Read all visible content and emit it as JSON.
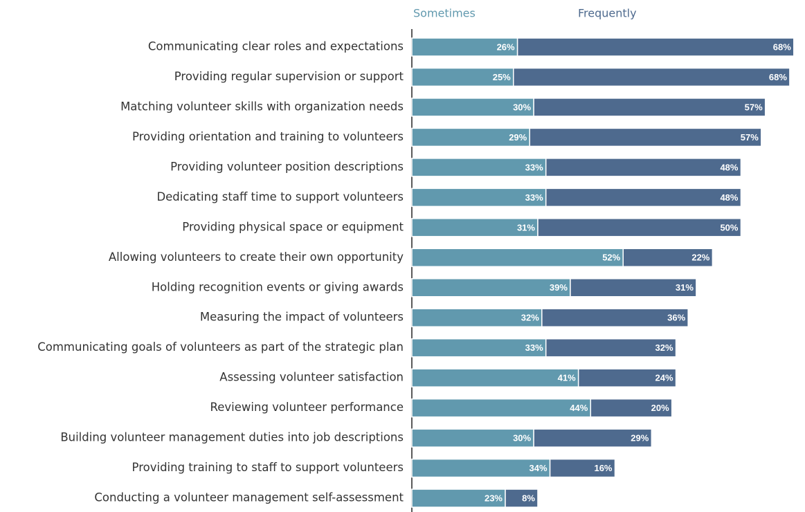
{
  "chart_data": {
    "type": "stacked-bar",
    "categories": [
      "Communicating clear roles and expectations",
      "Providing regular supervision or support",
      "Matching volunteer skills with organization needs",
      "Providing orientation and training to volunteers",
      "Providing volunteer position descriptions",
      "Dedicating staff time to support volunteers",
      "Providing physical space or equipment",
      "Allowing volunteers to create their own opportunity",
      "Holding recognition events or giving awards",
      "Measuring the impact of volunteers",
      "Communicating goals of volunteers as part of the strategic plan",
      "Assessing volunteer satisfaction",
      "Reviewing volunteer performance",
      "Building volunteer management duties into job descriptions",
      "Providing training to staff to support volunteers",
      "Conducting a volunteer management self-assessment"
    ],
    "series": [
      {
        "name": "Sometimes",
        "color": "#6199ae",
        "values": [
          26,
          25,
          30,
          29,
          33,
          33,
          31,
          52,
          39,
          32,
          33,
          41,
          44,
          30,
          34,
          23
        ],
        "value_labels": [
          "26%",
          "25%",
          "30%",
          "29%",
          "33%",
          "33%",
          "31%",
          "52%",
          "39%",
          "32%",
          "33%",
          "41%",
          "44%",
          "30%",
          "34%",
          "23%"
        ]
      },
      {
        "name": "Frequently",
        "color": "#4e6a8e",
        "values": [
          68,
          68,
          57,
          57,
          48,
          48,
          50,
          22,
          31,
          36,
          32,
          24,
          20,
          29,
          16,
          8
        ],
        "value_labels": [
          "68%",
          "68%",
          "57%",
          "57%",
          "48%",
          "48%",
          "50%",
          "22%",
          "31%",
          "36%",
          "32%",
          "24%",
          "20%",
          "29%",
          "16%",
          "8%"
        ]
      }
    ]
  }
}
